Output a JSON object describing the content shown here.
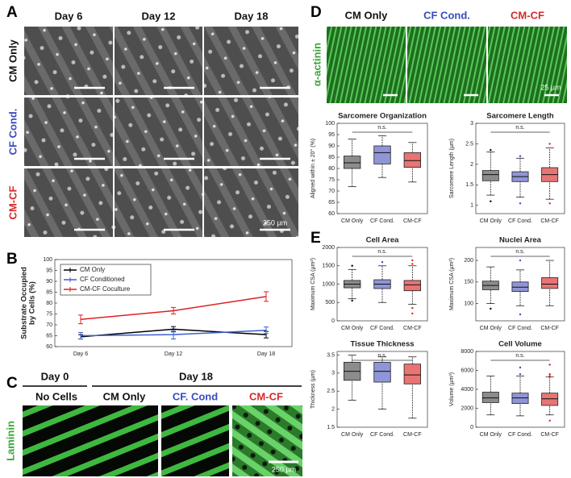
{
  "panel_a": {
    "label": "A",
    "columns": [
      "Day 6",
      "Day 12",
      "Day 18"
    ],
    "rows": [
      "CM Only",
      "CF Cond.",
      "CM-CF"
    ],
    "scale_bar": "250 µm"
  },
  "panel_b": {
    "label": "B"
  },
  "panel_c": {
    "label": "C",
    "groups": [
      "Day 0",
      "Day 18"
    ],
    "columns": [
      "No Cells",
      "CM Only",
      "CF. Cond",
      "CM-CF"
    ],
    "stain": "Laminin",
    "scale_bar": "250 µm"
  },
  "panel_d": {
    "label": "D",
    "columns": [
      "CM Only",
      "CF Cond.",
      "CM-CF"
    ],
    "stain": "α-actinin",
    "scale_bar": "25 µm"
  },
  "panel_e": {
    "label": "E"
  },
  "chart_data": [
    {
      "type": "line",
      "ylabel": [
        "Substrate Occupied",
        "by Cells (%)"
      ],
      "categories": [
        "Day 6",
        "Day 12",
        "Day 18"
      ],
      "series": [
        {
          "name": "CM Only",
          "color": "#000000",
          "values": [
            64.5,
            68,
            65.5
          ],
          "errors": [
            1,
            1.2,
            1.5
          ]
        },
        {
          "name": "CF Conditioned",
          "color": "#3a5fcd",
          "values": [
            65,
            65.5,
            67.5
          ],
          "errors": [
            1.5,
            2,
            1.5
          ]
        },
        {
          "name": "CM-CF Coculture",
          "color": "#e02020",
          "values": [
            72.5,
            76.5,
            83
          ],
          "errors": [
            2,
            1.5,
            2.2
          ]
        }
      ],
      "ylim": [
        60,
        100
      ],
      "yticks": [
        60,
        65,
        70,
        75,
        80,
        85,
        90,
        95,
        100
      ],
      "legend": "upper left"
    },
    {
      "type": "box",
      "title": "Sarcomere Organization",
      "ylabel": "Aligned within ± 20° (%)",
      "categories": [
        "CM Only",
        "CF Cond.",
        "CM-CF"
      ],
      "colors": [
        "#8c8c8c",
        "#8f95d6",
        "#e87474"
      ],
      "outlier_colors": [
        "#000000",
        "#3a4bc0",
        "#e02020"
      ],
      "annotation": "n.s.",
      "boxes": [
        {
          "low": 72,
          "q1": 80,
          "median": 82.5,
          "q3": 85.5,
          "high": 93,
          "outliers": []
        },
        {
          "low": 76,
          "q1": 82,
          "median": 87,
          "q3": 90,
          "high": 94.5,
          "outliers": []
        },
        {
          "low": 74,
          "q1": 80.5,
          "median": 83.5,
          "q3": 87,
          "high": 91.5,
          "outliers": []
        }
      ],
      "ylim": [
        60,
        100
      ],
      "yticks": [
        60,
        65,
        70,
        75,
        80,
        85,
        90,
        95,
        100
      ]
    },
    {
      "type": "box",
      "title": "Sarcomere Length",
      "ylabel": "Sarcomere Length (µm)",
      "categories": [
        "CM Only",
        "CF Cond.",
        "CM-CF"
      ],
      "colors": [
        "#8c8c8c",
        "#8f95d6",
        "#e87474"
      ],
      "outlier_colors": [
        "#000000",
        "#3a4bc0",
        "#e02020"
      ],
      "annotation": "n.s.",
      "boxes": [
        {
          "low": 1.25,
          "q1": 1.6,
          "median": 1.75,
          "q3": 1.85,
          "high": 2.3,
          "outliers": [
            1.1,
            2.35
          ]
        },
        {
          "low": 1.2,
          "q1": 1.58,
          "median": 1.7,
          "q3": 1.82,
          "high": 2.15,
          "outliers": [
            1.05,
            2.2
          ]
        },
        {
          "low": 1.15,
          "q1": 1.58,
          "median": 1.75,
          "q3": 1.92,
          "high": 2.4,
          "outliers": [
            2.5,
            1.05
          ]
        }
      ],
      "ylim": [
        0.8,
        3
      ],
      "yticks": [
        1,
        1.5,
        2,
        2.5,
        3
      ]
    },
    {
      "type": "box",
      "title": "Cell Area",
      "ylabel": "Maximum CSA (µm²)",
      "categories": [
        "CM Only",
        "CF Cond.",
        "CM-CF"
      ],
      "colors": [
        "#8c8c8c",
        "#8f95d6",
        "#e87474"
      ],
      "outlier_colors": [
        "#000000",
        "#3a4bc0",
        "#e02020"
      ],
      "annotation": "n.s.",
      "boxes": [
        {
          "low": 600,
          "q1": 900,
          "median": 1000,
          "q3": 1100,
          "high": 1400,
          "outliers": [
            1500,
            550
          ]
        },
        {
          "low": 500,
          "q1": 880,
          "median": 1000,
          "q3": 1120,
          "high": 1500,
          "outliers": [
            1600
          ]
        },
        {
          "low": 450,
          "q1": 820,
          "median": 980,
          "q3": 1100,
          "high": 1500,
          "outliers": [
            1650,
            1550,
            350,
            200
          ]
        }
      ],
      "ylim": [
        0,
        2000
      ],
      "yticks": [
        0,
        500,
        1000,
        1500,
        2000
      ]
    },
    {
      "type": "box",
      "title": "Nuclei Area",
      "ylabel": "Maximum CSA (µm²)",
      "categories": [
        "CM Only",
        "CF Cond.",
        "CM-CF"
      ],
      "colors": [
        "#8c8c8c",
        "#8f95d6",
        "#e87474"
      ],
      "outlier_colors": [
        "#000000",
        "#3a4bc0",
        "#e02020"
      ],
      "annotation": "n.s.",
      "boxes": [
        {
          "low": 100,
          "q1": 132,
          "median": 142,
          "q3": 152,
          "high": 185,
          "outliers": [
            88
          ]
        },
        {
          "low": 95,
          "q1": 128,
          "median": 138,
          "q3": 150,
          "high": 178,
          "outliers": [
            200,
            75
          ]
        },
        {
          "low": 95,
          "q1": 135,
          "median": 145,
          "q3": 160,
          "high": 200,
          "outliers": []
        }
      ],
      "ylim": [
        60,
        230
      ],
      "yticks": [
        100,
        150,
        200
      ]
    },
    {
      "type": "box",
      "title": "Tissue Thickness",
      "ylabel": "Thickness (µm)",
      "categories": [
        "CM Only",
        "CF Cond.",
        "CM-CF"
      ],
      "colors": [
        "#8c8c8c",
        "#8f95d6",
        "#e87474"
      ],
      "outlier_colors": [
        "#000000",
        "#3a4bc0",
        "#e02020"
      ],
      "annotation": "n.s.",
      "boxes": [
        {
          "low": 2.25,
          "q1": 2.8,
          "median": 3.05,
          "q3": 3.3,
          "high": 3.5,
          "outliers": []
        },
        {
          "low": 2.0,
          "q1": 2.75,
          "median": 3.05,
          "q3": 3.3,
          "high": 3.45,
          "outliers": []
        },
        {
          "low": 1.75,
          "q1": 2.7,
          "median": 2.95,
          "q3": 3.25,
          "high": 3.45,
          "outliers": []
        }
      ],
      "ylim": [
        1.5,
        3.6
      ],
      "yticks": [
        1.5,
        2,
        2.5,
        3,
        3.5
      ]
    },
    {
      "type": "box",
      "title": "Cell Volume",
      "ylabel": "Volume (µm³)",
      "categories": [
        "CM Only",
        "CF Cond.",
        "CM-CF"
      ],
      "colors": [
        "#8c8c8c",
        "#8f95d6",
        "#e87474"
      ],
      "outlier_colors": [
        "#000000",
        "#3a4bc0",
        "#e02020"
      ],
      "annotation": "n.s.",
      "boxes": [
        {
          "low": 1300,
          "q1": 2600,
          "median": 3100,
          "q3": 3700,
          "high": 5400,
          "outliers": []
        },
        {
          "low": 1200,
          "q1": 2500,
          "median": 3100,
          "q3": 3600,
          "high": 5400,
          "outliers": [
            6300,
            5600
          ]
        },
        {
          "low": 1300,
          "q1": 2300,
          "median": 3000,
          "q3": 3600,
          "high": 5300,
          "outliers": [
            6600,
            5600,
            5400,
            700
          ]
        }
      ],
      "ylim": [
        0,
        8000
      ],
      "yticks": [
        0,
        2000,
        4000,
        6000,
        8000
      ]
    }
  ]
}
